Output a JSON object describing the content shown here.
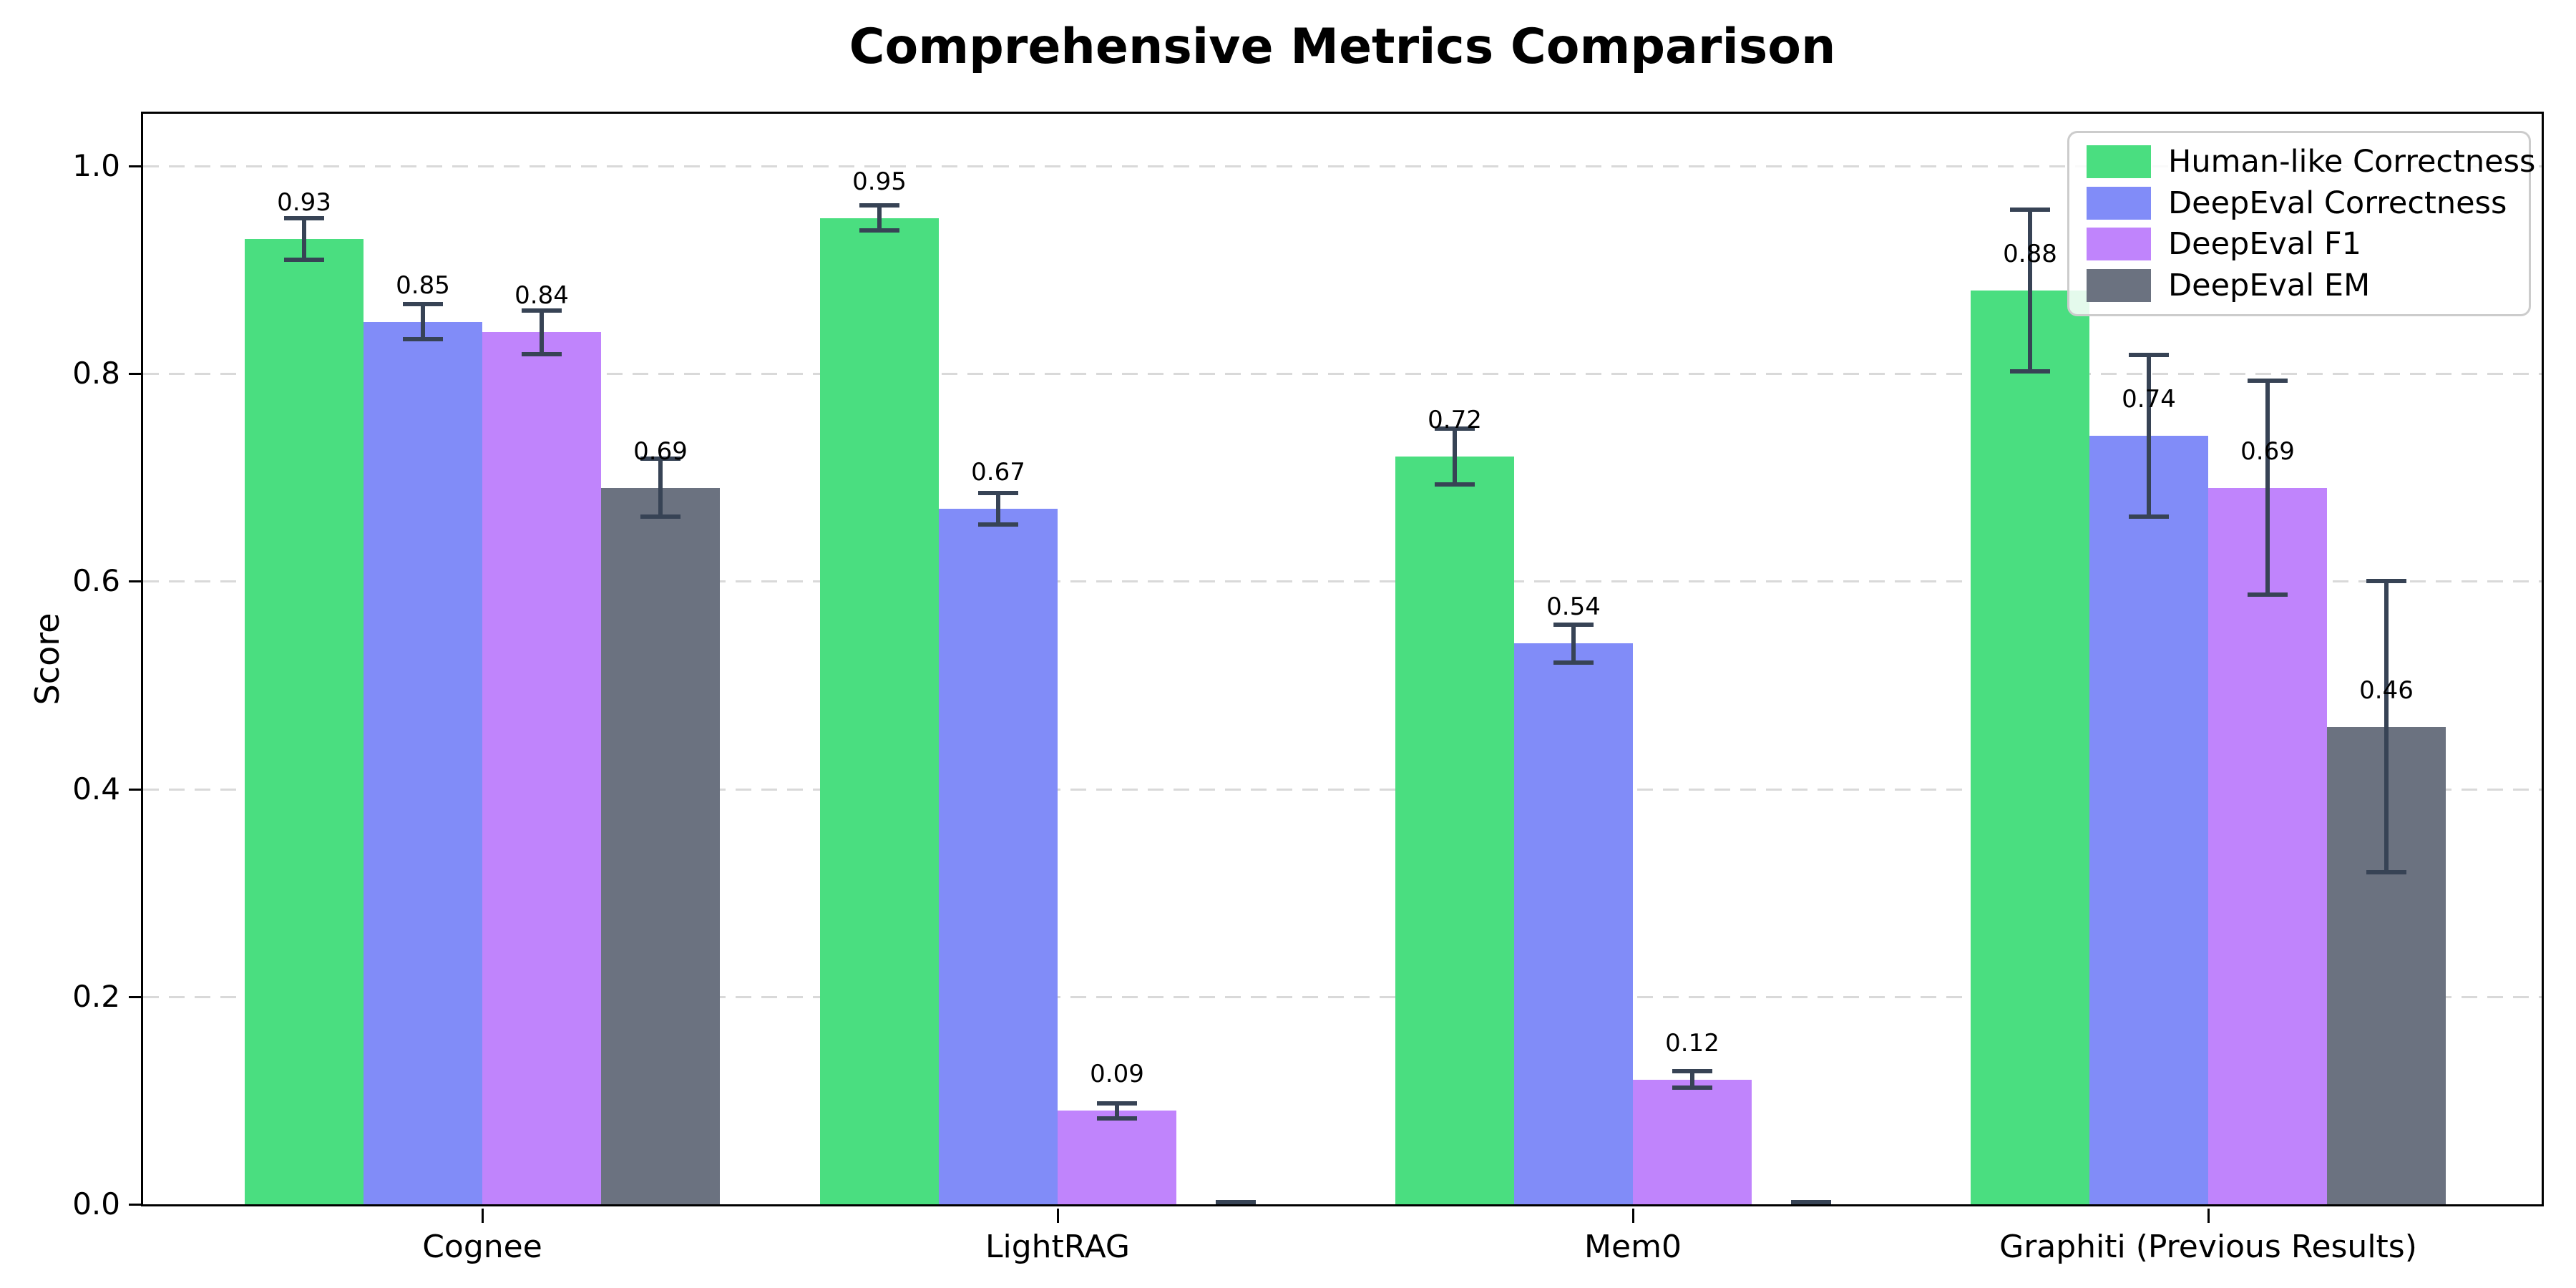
{
  "chart_data": {
    "type": "bar",
    "title": "Comprehensive Metrics Comparison",
    "xlabel": "",
    "ylabel": "Score",
    "categories": [
      "Cognee",
      "LightRAG",
      "Mem0",
      "Graphiti (Previous Results)"
    ],
    "series": [
      {
        "name": "Human-like Correctness",
        "color": "#4ade80",
        "values": [
          0.93,
          0.95,
          0.72,
          0.88
        ],
        "errors": [
          0.02,
          0.012,
          0.027,
          0.078
        ],
        "labels": [
          "0.93",
          "0.95",
          "0.72",
          "0.88"
        ]
      },
      {
        "name": "DeepEval Correctness",
        "color": "#818cf8",
        "values": [
          0.85,
          0.67,
          0.54,
          0.74
        ],
        "errors": [
          0.017,
          0.015,
          0.018,
          0.078
        ],
        "labels": [
          "0.85",
          "0.67",
          "0.54",
          "0.74"
        ]
      },
      {
        "name": "DeepEval F1",
        "color": "#c084fc",
        "values": [
          0.84,
          0.09,
          0.12,
          0.69
        ],
        "errors": [
          0.021,
          0.007,
          0.008,
          0.103
        ],
        "labels": [
          "0.84",
          "0.09",
          "0.12",
          "0.69"
        ]
      },
      {
        "name": "DeepEval EM",
        "color": "#6b7280",
        "values": [
          0.69,
          0.0,
          0.0,
          0.46
        ],
        "errors": [
          0.028,
          0.0,
          0.0,
          0.14
        ],
        "labels": [
          "0.69",
          null,
          null,
          "0.46"
        ]
      }
    ],
    "ylim": [
      0.0,
      1.05
    ],
    "yticks": [
      "0.0",
      "0.2",
      "0.4",
      "0.6",
      "0.8",
      "1.0"
    ],
    "grid": {
      "axis": "y",
      "style": "dashed",
      "color": "#d9d9d9"
    },
    "error_bar_color": "#374355",
    "legend": {
      "position": "upper right"
    }
  }
}
